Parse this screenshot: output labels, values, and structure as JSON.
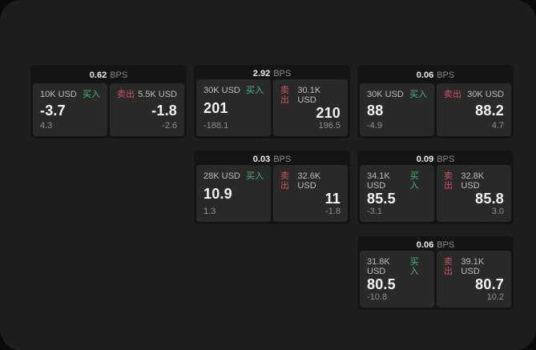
{
  "labels": {
    "bps": "BPS",
    "buy": "买入",
    "sell": "卖出"
  },
  "colors": {
    "backdrop": "#0a0a0a",
    "panel_background": "#1d1d1d",
    "card_background": "#141414",
    "tile_background": "#292929",
    "buy_green": "#41b979",
    "sell_red": "#cf5263",
    "primary_text": "#f5f5f5",
    "secondary_text": "#8f8f8f"
  },
  "cards": [
    {
      "bps": "0.62",
      "buy": {
        "amount": "10K USD",
        "value": "-3.7",
        "sub": "4.3"
      },
      "sell": {
        "amount": "5.5K USD",
        "value": "-1.8",
        "sub": "-2.6"
      }
    },
    {
      "bps": "2.92",
      "buy": {
        "amount": "30K USD",
        "value": "201",
        "sub": "-188.1"
      },
      "sell": {
        "amount": "30.1K USD",
        "value": "210",
        "sub": "196.5"
      }
    },
    {
      "bps": "0.03",
      "buy": {
        "amount": "28K USD",
        "value": "10.9",
        "sub": "1.3"
      },
      "sell": {
        "amount": "32.6K USD",
        "value": "11",
        "sub": "-1.8"
      }
    },
    {
      "bps": "0.06",
      "buy": {
        "amount": "30K USD",
        "value": "88",
        "sub": "-4.9"
      },
      "sell": {
        "amount": "30K USD",
        "value": "88.2",
        "sub": "4.7"
      }
    },
    {
      "bps": "0.09",
      "buy": {
        "amount": "34.1K USD",
        "value": "85.5",
        "sub": "-3.1"
      },
      "sell": {
        "amount": "32.8K USD",
        "value": "85.8",
        "sub": "3.0"
      }
    },
    {
      "bps": "0.06",
      "buy": {
        "amount": "31.8K USD",
        "value": "80.5",
        "sub": "-10.8"
      },
      "sell": {
        "amount": "39.1K USD",
        "value": "80.7",
        "sub": "10.2"
      }
    }
  ],
  "layout_columns": [
    [
      0
    ],
    [
      1,
      2
    ],
    [
      3,
      4,
      5
    ]
  ]
}
